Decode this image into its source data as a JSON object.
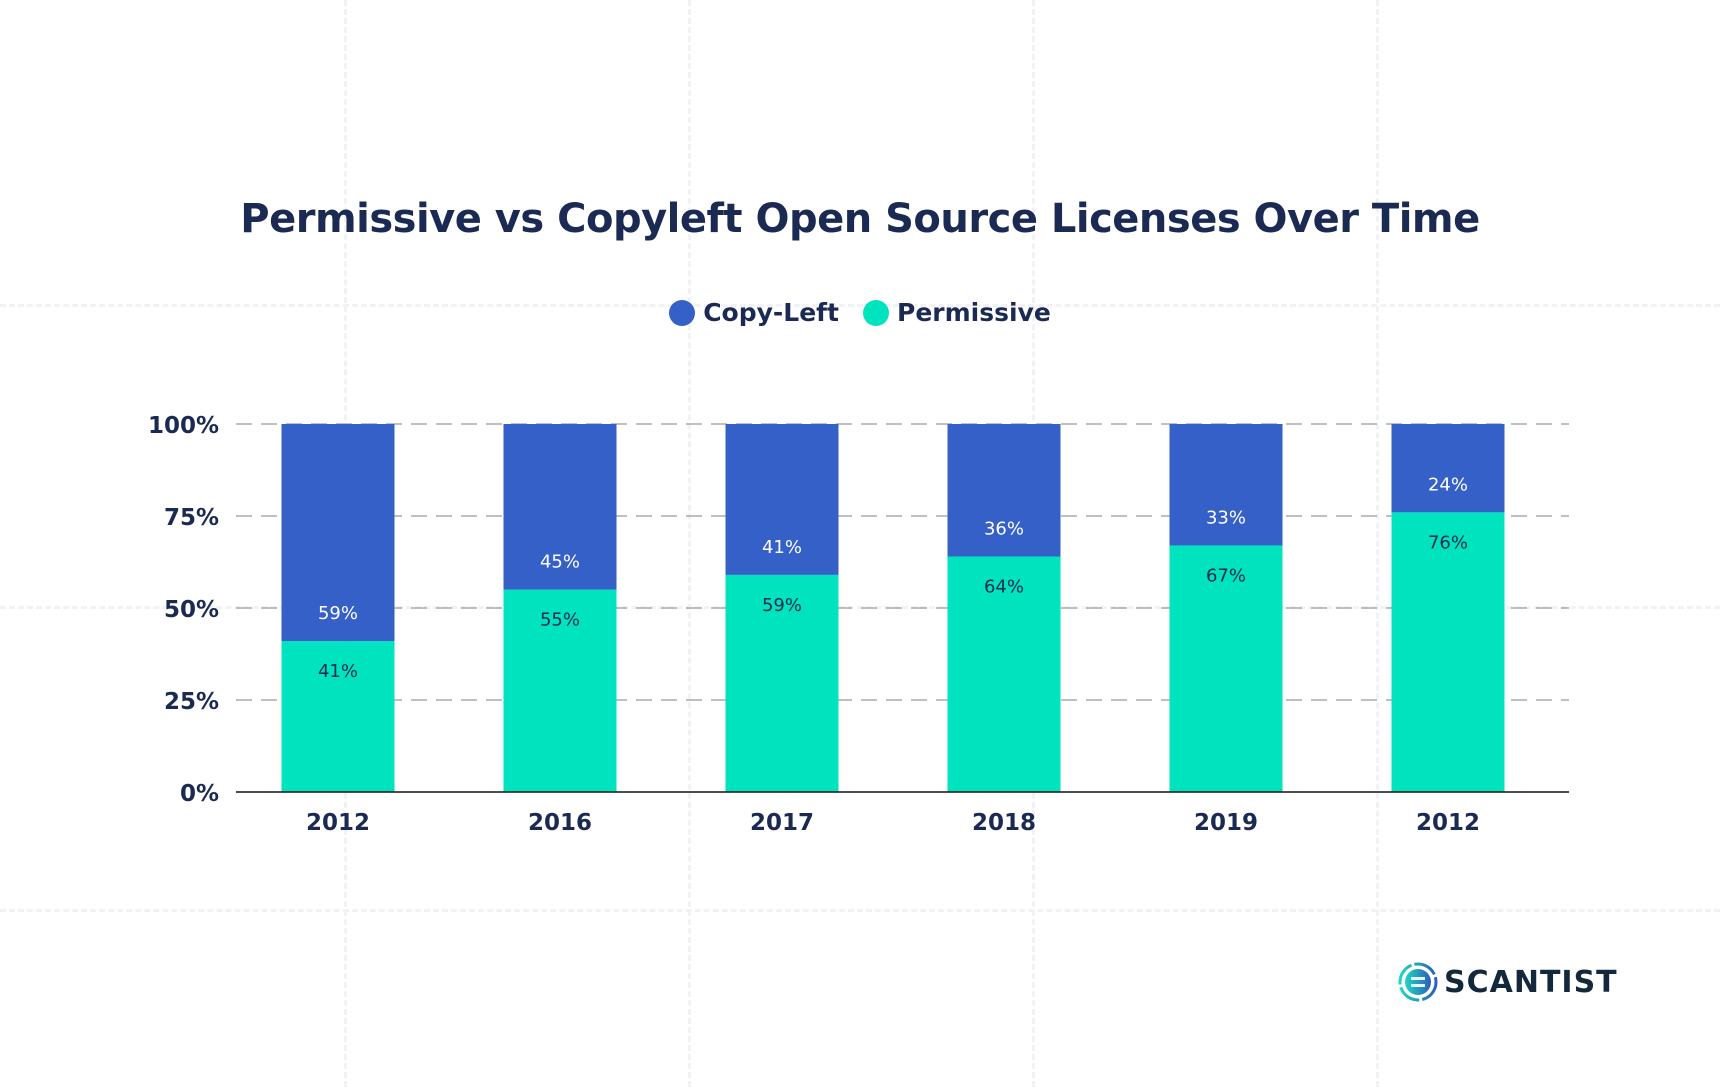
{
  "chart_data": {
    "type": "bar",
    "stacked": true,
    "title": "Permissive vs Copyleft Open Source Licenses Over Time",
    "categories": [
      "2012",
      "2016",
      "2017",
      "2018",
      "2019",
      "2012"
    ],
    "series": [
      {
        "name": "Permissive",
        "color": "#00e3bf",
        "values": [
          41,
          55,
          59,
          64,
          67,
          76
        ],
        "labels": [
          "41%",
          "55%",
          "59%",
          "64%",
          "67%",
          "76%"
        ]
      },
      {
        "name": "Copy-Left",
        "color": "#3560c8",
        "values": [
          59,
          45,
          41,
          36,
          33,
          24
        ],
        "labels": [
          "59%",
          "45%",
          "41%",
          "36%",
          "33%",
          "24%"
        ]
      }
    ],
    "legend": [
      {
        "name": "Copy-Left",
        "color": "#3560c8"
      },
      {
        "name": "Permissive",
        "color": "#00e3bf"
      }
    ],
    "legend_position": "top-center",
    "ylim": [
      0,
      100
    ],
    "yticks": [
      "0%",
      "25%",
      "50%",
      "75%",
      "100%"
    ],
    "grid": "horizontal dashed",
    "xlabel": "",
    "ylabel": ""
  },
  "logo": {
    "text": "SCANTIST"
  }
}
